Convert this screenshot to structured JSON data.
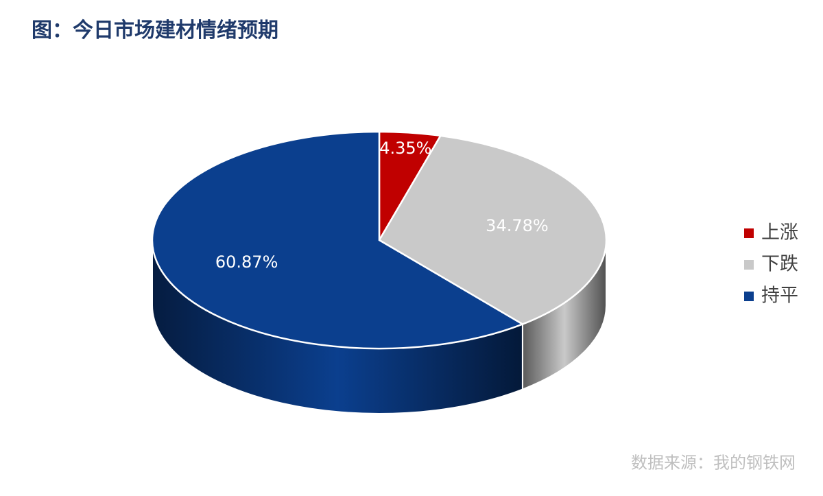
{
  "chart_data": {
    "type": "pie3d",
    "title": "图：今日市场建材情绪预期",
    "categories": [
      "上涨",
      "下跌",
      "持平"
    ],
    "values": [
      4.35,
      34.78,
      60.87
    ],
    "value_labels": [
      "4.35%",
      "34.78%",
      "60.87%"
    ],
    "colors": [
      "#c00000",
      "#c9c9c9",
      "#0b3f8e"
    ],
    "legend": "right",
    "source": "数据来源：我的钢铁网"
  }
}
